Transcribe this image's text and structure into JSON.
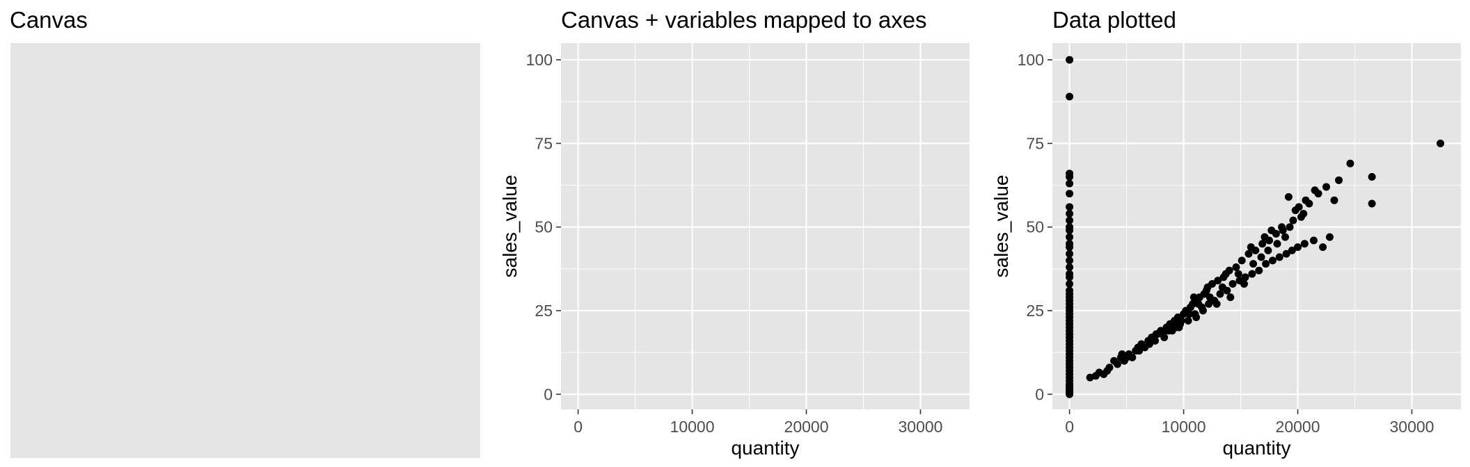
{
  "panels": [
    {
      "title": "Canvas"
    },
    {
      "title": "Canvas + variables mapped to axes"
    },
    {
      "title": "Data plotted"
    }
  ],
  "colors": {
    "panel_bg": "#e5e5e5",
    "grid": "#ffffff",
    "point": "#000000",
    "tick_text": "#4d4d4d"
  },
  "chart_data": [
    {
      "type": "blank",
      "title": "Canvas"
    },
    {
      "type": "scatter",
      "title": "Canvas + variables mapped to axes",
      "xlabel": "quantity",
      "ylabel": "sales_value",
      "xlim": [
        -1500,
        34300
      ],
      "ylim": [
        -4.5,
        105
      ],
      "x_ticks": [
        0,
        10000,
        20000,
        30000
      ],
      "y_ticks": [
        0,
        25,
        50,
        75,
        100
      ],
      "grid": true,
      "points": []
    },
    {
      "type": "scatter",
      "title": "Data plotted",
      "xlabel": "quantity",
      "ylabel": "sales_value",
      "xlim": [
        -1500,
        34300
      ],
      "ylim": [
        -4.5,
        105
      ],
      "x_ticks": [
        0,
        10000,
        20000,
        30000
      ],
      "y_ticks": [
        0,
        25,
        50,
        75,
        100
      ],
      "grid": true,
      "points": [
        [
          0,
          100
        ],
        [
          0,
          89
        ],
        [
          0,
          66
        ],
        [
          0,
          65
        ],
        [
          0,
          63
        ],
        [
          0,
          60
        ],
        [
          0,
          56
        ],
        [
          0,
          54
        ],
        [
          0,
          52
        ],
        [
          0,
          50
        ],
        [
          0,
          49
        ],
        [
          0,
          47
        ],
        [
          0,
          45
        ],
        [
          0,
          44
        ],
        [
          0,
          42
        ],
        [
          0,
          40
        ],
        [
          0,
          38
        ],
        [
          0,
          36
        ],
        [
          0,
          35
        ],
        [
          0,
          33
        ],
        [
          0,
          31
        ],
        [
          0,
          30
        ],
        [
          0,
          29
        ],
        [
          0,
          28
        ],
        [
          0,
          27
        ],
        [
          0,
          26
        ],
        [
          0,
          25
        ],
        [
          0,
          24
        ],
        [
          0,
          23
        ],
        [
          0,
          22
        ],
        [
          0,
          21
        ],
        [
          0,
          20
        ],
        [
          0,
          19
        ],
        [
          0,
          18
        ],
        [
          0,
          17
        ],
        [
          0,
          16
        ],
        [
          0,
          15
        ],
        [
          0,
          14
        ],
        [
          0,
          13
        ],
        [
          0,
          12
        ],
        [
          0,
          11
        ],
        [
          0,
          10
        ],
        [
          0,
          9
        ],
        [
          0,
          8
        ],
        [
          0,
          7
        ],
        [
          0,
          6
        ],
        [
          0,
          5
        ],
        [
          0,
          4
        ],
        [
          0,
          3
        ],
        [
          0,
          2.5
        ],
        [
          0,
          2
        ],
        [
          0,
          1.5
        ],
        [
          0,
          1
        ],
        [
          0,
          0.5
        ],
        [
          0,
          0
        ],
        [
          1800,
          5
        ],
        [
          2300,
          5.5
        ],
        [
          2600,
          6.5
        ],
        [
          3000,
          6
        ],
        [
          3300,
          7
        ],
        [
          3500,
          8
        ],
        [
          3900,
          10
        ],
        [
          4200,
          9
        ],
        [
          4500,
          11
        ],
        [
          4800,
          10
        ],
        [
          5200,
          12
        ],
        [
          5500,
          11
        ],
        [
          5800,
          13
        ],
        [
          6000,
          14
        ],
        [
          6300,
          15
        ],
        [
          6600,
          14
        ],
        [
          6900,
          16
        ],
        [
          7200,
          17
        ],
        [
          7500,
          16
        ],
        [
          7700,
          18
        ],
        [
          8000,
          19
        ],
        [
          8200,
          18
        ],
        [
          8500,
          20
        ],
        [
          8800,
          21
        ],
        [
          9000,
          19
        ],
        [
          9200,
          22
        ],
        [
          9500,
          23
        ],
        [
          9700,
          21
        ],
        [
          10000,
          24
        ],
        [
          10200,
          25
        ],
        [
          10400,
          22
        ],
        [
          10600,
          26
        ],
        [
          10800,
          27
        ],
        [
          11000,
          24
        ],
        [
          11200,
          28
        ],
        [
          11400,
          29
        ],
        [
          11600,
          26
        ],
        [
          11800,
          30
        ],
        [
          12000,
          31
        ],
        [
          12200,
          27
        ],
        [
          12500,
          33
        ],
        [
          12700,
          28
        ],
        [
          13000,
          34
        ],
        [
          13200,
          30
        ],
        [
          13500,
          35
        ],
        [
          13800,
          31
        ],
        [
          14000,
          37
        ],
        [
          14300,
          33
        ],
        [
          14600,
          38
        ],
        [
          14900,
          34
        ],
        [
          15100,
          40
        ],
        [
          15400,
          35
        ],
        [
          15700,
          42
        ],
        [
          16000,
          36
        ],
        [
          16300,
          43
        ],
        [
          16600,
          37
        ],
        [
          16900,
          45
        ],
        [
          17200,
          39
        ],
        [
          17500,
          46
        ],
        [
          17800,
          40
        ],
        [
          18100,
          48
        ],
        [
          18400,
          41
        ],
        [
          18700,
          49
        ],
        [
          19000,
          42
        ],
        [
          19300,
          50
        ],
        [
          19500,
          43
        ],
        [
          19800,
          55
        ],
        [
          20000,
          44
        ],
        [
          20300,
          53
        ],
        [
          20600,
          45
        ],
        [
          21000,
          57
        ],
        [
          21400,
          46
        ],
        [
          21800,
          60
        ],
        [
          22200,
          44
        ],
        [
          22500,
          62
        ],
        [
          22800,
          47
        ],
        [
          23200,
          58
        ],
        [
          23600,
          64
        ],
        [
          24600,
          69
        ],
        [
          26500,
          65
        ],
        [
          26500,
          57
        ],
        [
          32500,
          75
        ],
        [
          9600,
          20
        ],
        [
          9800,
          22
        ],
        [
          10500,
          24
        ],
        [
          11100,
          23
        ],
        [
          11700,
          25
        ],
        [
          12300,
          29
        ],
        [
          12900,
          27
        ],
        [
          13400,
          32
        ],
        [
          14100,
          29
        ],
        [
          14800,
          36
        ],
        [
          15300,
          33
        ],
        [
          16100,
          39
        ],
        [
          16800,
          41
        ],
        [
          17400,
          43
        ],
        [
          18200,
          45
        ],
        [
          18900,
          47
        ],
        [
          19600,
          52
        ],
        [
          20500,
          54
        ],
        [
          7000,
          15
        ],
        [
          7600,
          18
        ],
        [
          8300,
          17
        ],
        [
          8700,
          19
        ],
        [
          9300,
          20
        ],
        [
          6100,
          13
        ],
        [
          5000,
          11
        ],
        [
          4600,
          12
        ],
        [
          15900,
          44
        ],
        [
          17100,
          47
        ],
        [
          17700,
          49
        ],
        [
          18600,
          50
        ],
        [
          19200,
          59
        ],
        [
          20100,
          56
        ],
        [
          20700,
          58
        ],
        [
          21500,
          61
        ],
        [
          13700,
          36
        ],
        [
          12100,
          32
        ],
        [
          11300,
          27
        ],
        [
          10900,
          29
        ]
      ]
    }
  ]
}
